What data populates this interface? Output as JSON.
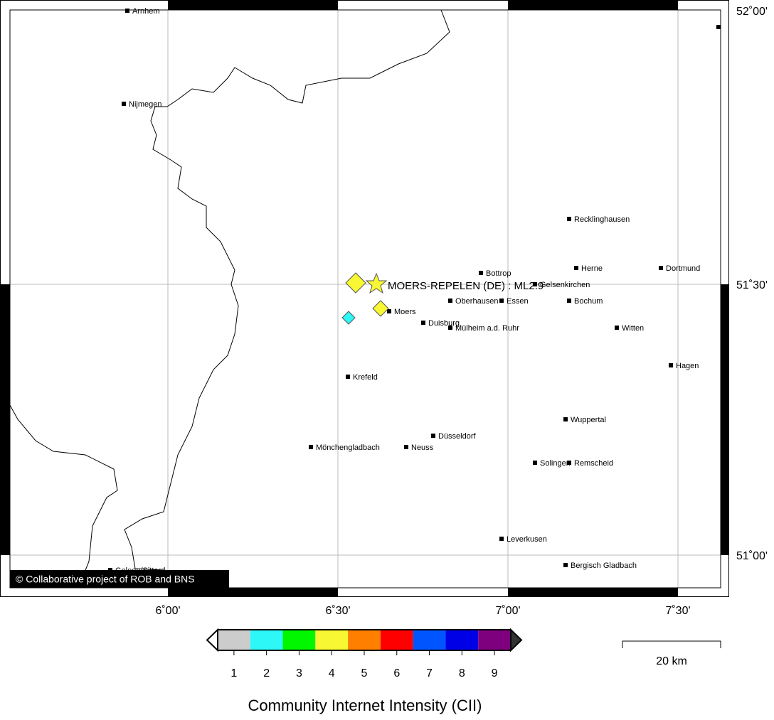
{
  "map": {
    "lon_ticks": [
      "6˚00'",
      "6˚30'",
      "7˚00'",
      "7˚30'"
    ],
    "lat_ticks": [
      "52˚00'",
      "51˚30'",
      "51˚00'"
    ],
    "cities": [
      "Arnhem",
      "Nijmegen",
      "Recklinghausen",
      "Bottrop",
      "Herne",
      "Dortmund",
      "Gelsenkirchen",
      "Oberhausen",
      "Essen",
      "Bochum",
      "Moers",
      "Duisburg",
      "Mülheim a.d. Ruhr",
      "Witten",
      "Hagen",
      "Krefeld",
      "Wuppertal",
      "Düsseldorf",
      "Mönchengladbach",
      "Neuss",
      "Solingen",
      "Remscheid",
      "Leverkusen",
      "Bergisch Gladbach",
      "Geleen/Sittard"
    ],
    "event": "MOERS-REPELEN (DE) : ML2.9",
    "credit": "© Collaborative project of ROB and BNS"
  },
  "legend": {
    "title": "Community Internet Intensity (CII)",
    "levels": [
      1,
      2,
      3,
      4,
      5,
      6,
      7,
      8,
      9
    ],
    "colors": [
      "#cccccc",
      "#2ef7f7",
      "#00f700",
      "#f7f733",
      "#ff7f00",
      "#ff0000",
      "#0055ff",
      "#0000e6",
      "#7f007f"
    ]
  },
  "scale_bar": "20 km"
}
